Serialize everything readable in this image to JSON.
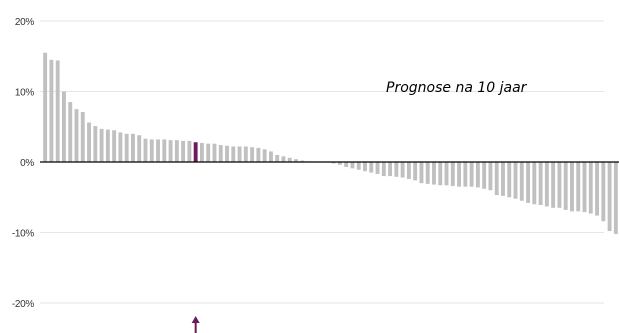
{
  "chart_data": {
    "type": "bar",
    "title": "",
    "xlabel": "",
    "ylabel": "",
    "ylim": [
      -20,
      20
    ],
    "y_ticks": [
      20,
      10,
      0,
      -10,
      -20
    ],
    "y_tick_labels": [
      "20%",
      "10%",
      "0%",
      "-10%",
      "-20%"
    ],
    "grid": true,
    "annotation": "Prognose na 10 jaar",
    "highlight_index": 24,
    "colors": {
      "bar": "#c0c0c0",
      "highlight": "#6b1a5b",
      "zero_line": "#000000",
      "grid": "#e6e6e6"
    },
    "values": [
      15.5,
      14.5,
      14.4,
      10.0,
      8.5,
      7.5,
      7.1,
      5.6,
      5.1,
      4.7,
      4.6,
      4.5,
      4.2,
      4.0,
      4.0,
      3.8,
      3.3,
      3.2,
      3.2,
      3.2,
      3.1,
      3.1,
      3.0,
      3.0,
      2.8,
      2.7,
      2.6,
      2.6,
      2.4,
      2.3,
      2.2,
      2.2,
      2.2,
      2.1,
      2.0,
      1.8,
      1.5,
      1.0,
      0.8,
      0.6,
      0.4,
      0.2,
      0.1,
      0.0,
      0.0,
      0.0,
      -0.2,
      -0.4,
      -0.7,
      -0.9,
      -1.1,
      -1.3,
      -1.5,
      -1.7,
      -2.0,
      -2.0,
      -2.1,
      -2.2,
      -2.4,
      -2.6,
      -3.0,
      -3.1,
      -3.2,
      -3.3,
      -3.3,
      -3.4,
      -3.5,
      -3.5,
      -3.5,
      -3.6,
      -3.8,
      -4.0,
      -4.7,
      -4.8,
      -5.0,
      -5.2,
      -5.5,
      -5.8,
      -6.0,
      -6.1,
      -6.3,
      -6.5,
      -6.5,
      -6.8,
      -7.0,
      -7.0,
      -7.1,
      -7.3,
      -7.6,
      -8.4,
      -9.8,
      -10.2
    ]
  }
}
